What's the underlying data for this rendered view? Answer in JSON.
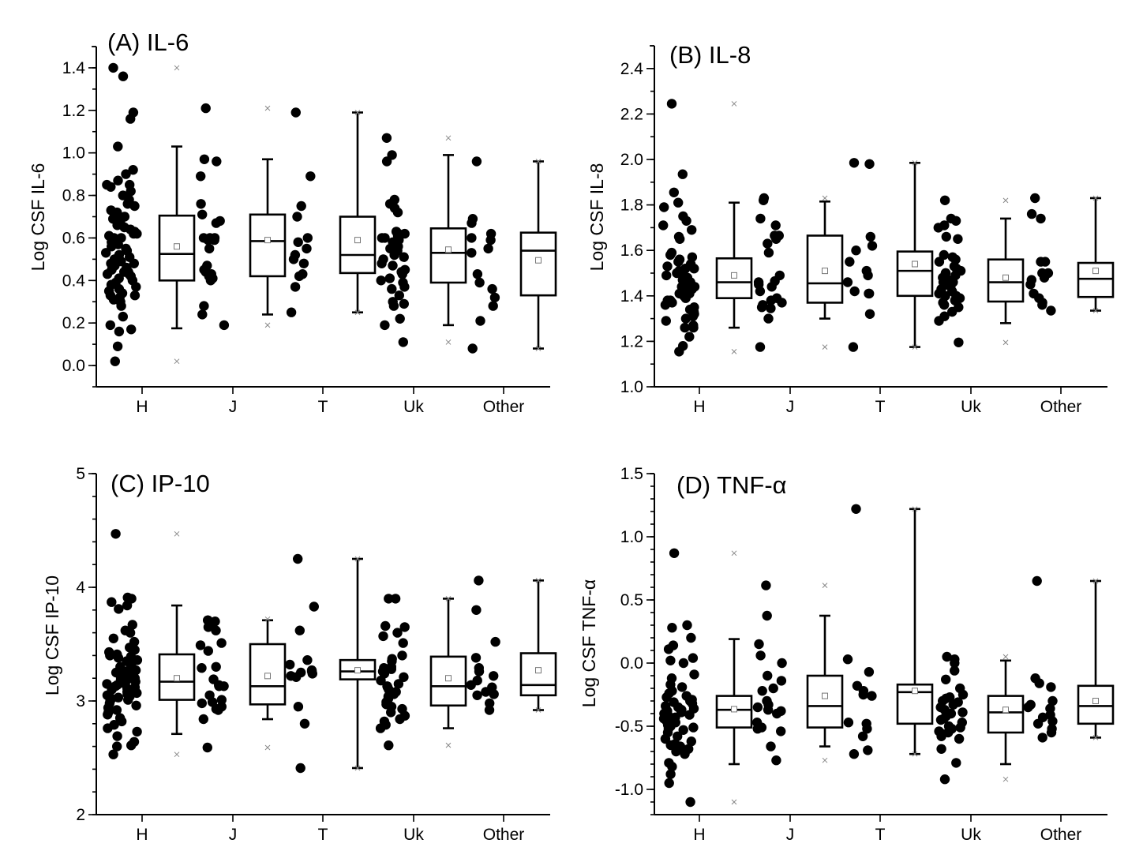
{
  "figure": {
    "background": "#ffffff",
    "dot_color": "#000000",
    "marker_color": "#888888"
  },
  "chart_data": [
    {
      "type": "box",
      "title": "(A) IL-6",
      "ylabel": "Log CSF IL-6",
      "xlabel": "",
      "categories": [
        "H",
        "J",
        "T",
        "Uk",
        "Other"
      ],
      "ylim": [
        -0.1,
        1.5
      ],
      "yticks": [
        0.0,
        0.2,
        0.4,
        0.6,
        0.8,
        1.0,
        1.2,
        1.4
      ],
      "ytick_labels": [
        "0.0",
        "0.2",
        "0.4",
        "0.6",
        "0.8",
        "1.0",
        "1.2",
        "1.4"
      ],
      "yminor_step": 0.1,
      "grid": false,
      "boxes": [
        {
          "category": "H",
          "q1": 0.4,
          "median": 0.525,
          "q3": 0.705,
          "mean": 0.56,
          "whisker_low": 0.175,
          "whisker_high": 1.03,
          "min": 0.02,
          "max": 1.4
        },
        {
          "category": "J",
          "q1": 0.42,
          "median": 0.585,
          "q3": 0.71,
          "mean": 0.59,
          "whisker_low": 0.24,
          "whisker_high": 0.97,
          "min": 0.19,
          "max": 1.21
        },
        {
          "category": "T",
          "q1": 0.435,
          "median": 0.52,
          "q3": 0.7,
          "mean": 0.59,
          "whisker_low": 0.25,
          "whisker_high": 1.19,
          "min": 0.25,
          "max": 1.19
        },
        {
          "category": "Uk",
          "q1": 0.39,
          "median": 0.53,
          "q3": 0.645,
          "mean": 0.545,
          "whisker_low": 0.19,
          "whisker_high": 0.99,
          "min": 0.11,
          "max": 1.07
        },
        {
          "category": "Other",
          "q1": 0.33,
          "median": 0.54,
          "q3": 0.625,
          "mean": 0.495,
          "whisker_low": 0.08,
          "whisker_high": 0.96,
          "min": 0.08,
          "max": 0.96
        }
      ],
      "points": {
        "H": [
          1.4,
          1.36,
          1.19,
          1.16,
          1.03,
          0.92,
          0.9,
          0.87,
          0.85,
          0.85,
          0.84,
          0.82,
          0.8,
          0.78,
          0.76,
          0.75,
          0.73,
          0.72,
          0.71,
          0.7,
          0.7,
          0.69,
          0.68,
          0.67,
          0.66,
          0.65,
          0.64,
          0.63,
          0.62,
          0.62,
          0.61,
          0.6,
          0.6,
          0.59,
          0.58,
          0.57,
          0.56,
          0.55,
          0.54,
          0.53,
          0.52,
          0.51,
          0.5,
          0.49,
          0.48,
          0.48,
          0.47,
          0.46,
          0.45,
          0.44,
          0.44,
          0.43,
          0.43,
          0.42,
          0.41,
          0.4,
          0.39,
          0.38,
          0.37,
          0.36,
          0.35,
          0.34,
          0.33,
          0.33,
          0.32,
          0.31,
          0.3,
          0.28,
          0.23,
          0.19,
          0.17,
          0.16,
          0.09,
          0.02
        ],
        "J": [
          1.21,
          0.97,
          0.96,
          0.89,
          0.76,
          0.71,
          0.67,
          0.68,
          0.6,
          0.6,
          0.59,
          0.59,
          0.55,
          0.6,
          0.47,
          0.45,
          0.44,
          0.43,
          0.42,
          0.41,
          0.4,
          0.28,
          0.24,
          0.19
        ],
        "T": [
          1.19,
          0.89,
          0.75,
          0.7,
          0.6,
          0.58,
          0.55,
          0.52,
          0.5,
          0.48,
          0.43,
          0.42,
          0.37,
          0.25
        ],
        "Uk": [
          1.07,
          0.99,
          0.96,
          0.78,
          0.76,
          0.74,
          0.72,
          0.63,
          0.62,
          0.62,
          0.61,
          0.6,
          0.6,
          0.59,
          0.58,
          0.56,
          0.55,
          0.54,
          0.52,
          0.51,
          0.5,
          0.48,
          0.47,
          0.45,
          0.44,
          0.43,
          0.41,
          0.4,
          0.39,
          0.37,
          0.36,
          0.33,
          0.3,
          0.29,
          0.28,
          0.22,
          0.19,
          0.11
        ],
        "Other": [
          0.96,
          0.69,
          0.67,
          0.62,
          0.6,
          0.59,
          0.55,
          0.53,
          0.43,
          0.39,
          0.36,
          0.32,
          0.28,
          0.21,
          0.08
        ]
      }
    },
    {
      "type": "box",
      "title": "(B) IL-8",
      "ylabel": "Log CSF IL-8",
      "xlabel": "",
      "categories": [
        "H",
        "J",
        "T",
        "Uk",
        "Other"
      ],
      "ylim": [
        1.0,
        2.5
      ],
      "yticks": [
        1.0,
        1.2,
        1.4,
        1.6,
        1.8,
        2.0,
        2.2,
        2.4
      ],
      "ytick_labels": [
        "1.0",
        "1.2",
        "1.4",
        "1.6",
        "1.8",
        "2.0",
        "2.2",
        "2.4"
      ],
      "yminor_step": 0.1,
      "grid": false,
      "boxes": [
        {
          "category": "H",
          "q1": 1.39,
          "median": 1.46,
          "q3": 1.565,
          "mean": 1.49,
          "whisker_low": 1.26,
          "whisker_high": 1.81,
          "min": 1.155,
          "max": 2.245
        },
        {
          "category": "J",
          "q1": 1.37,
          "median": 1.455,
          "q3": 1.665,
          "mean": 1.51,
          "whisker_low": 1.3,
          "whisker_high": 1.815,
          "min": 1.175,
          "max": 1.83
        },
        {
          "category": "T",
          "q1": 1.4,
          "median": 1.51,
          "q3": 1.595,
          "mean": 1.54,
          "whisker_low": 1.175,
          "whisker_high": 1.985,
          "min": 1.175,
          "max": 1.985
        },
        {
          "category": "Uk",
          "q1": 1.375,
          "median": 1.46,
          "q3": 1.56,
          "mean": 1.48,
          "whisker_low": 1.28,
          "whisker_high": 1.74,
          "min": 1.195,
          "max": 1.82
        },
        {
          "category": "Other",
          "q1": 1.395,
          "median": 1.475,
          "q3": 1.545,
          "mean": 1.51,
          "whisker_low": 1.335,
          "whisker_high": 1.83,
          "min": 1.335,
          "max": 1.83
        }
      ],
      "points": {
        "H": [
          2.245,
          1.935,
          1.855,
          1.81,
          1.79,
          1.75,
          1.73,
          1.71,
          1.69,
          1.66,
          1.65,
          1.59,
          1.58,
          1.57,
          1.56,
          1.56,
          1.55,
          1.54,
          1.53,
          1.52,
          1.52,
          1.51,
          1.5,
          1.5,
          1.49,
          1.48,
          1.48,
          1.47,
          1.46,
          1.46,
          1.45,
          1.44,
          1.44,
          1.43,
          1.43,
          1.42,
          1.42,
          1.41,
          1.41,
          1.4,
          1.4,
          1.39,
          1.38,
          1.38,
          1.37,
          1.36,
          1.35,
          1.34,
          1.33,
          1.32,
          1.31,
          1.3,
          1.29,
          1.27,
          1.26,
          1.26,
          1.22,
          1.18,
          1.155
        ],
        "J": [
          1.83,
          1.82,
          1.74,
          1.71,
          1.665,
          1.665,
          1.65,
          1.63,
          1.59,
          1.49,
          1.465,
          1.46,
          1.45,
          1.44,
          1.42,
          1.39,
          1.38,
          1.37,
          1.36,
          1.35,
          1.345,
          1.3,
          1.175
        ],
        "T": [
          1.985,
          1.98,
          1.66,
          1.62,
          1.6,
          1.55,
          1.51,
          1.49,
          1.46,
          1.42,
          1.41,
          1.41,
          1.32,
          1.175
        ],
        "Uk": [
          1.82,
          1.74,
          1.73,
          1.71,
          1.7,
          1.66,
          1.65,
          1.58,
          1.57,
          1.56,
          1.55,
          1.53,
          1.52,
          1.51,
          1.5,
          1.5,
          1.49,
          1.48,
          1.47,
          1.46,
          1.46,
          1.45,
          1.44,
          1.43,
          1.42,
          1.41,
          1.4,
          1.4,
          1.39,
          1.38,
          1.37,
          1.36,
          1.35,
          1.33,
          1.31,
          1.29,
          1.195
        ],
        "Other": [
          1.83,
          1.76,
          1.74,
          1.55,
          1.55,
          1.5,
          1.5,
          1.48,
          1.47,
          1.45,
          1.41,
          1.39,
          1.37,
          1.36,
          1.335
        ]
      }
    },
    {
      "type": "box",
      "title": "(C) IP-10",
      "ylabel": "Log CSF IP-10",
      "xlabel": "",
      "categories": [
        "H",
        "J",
        "T",
        "Uk",
        "Other"
      ],
      "ylim": [
        2,
        5
      ],
      "yticks": [
        2,
        3,
        4,
        5
      ],
      "ytick_labels": [
        "2",
        "3",
        "4",
        "5"
      ],
      "yminor_step": 0.2,
      "grid": false,
      "boxes": [
        {
          "category": "H",
          "q1": 3.01,
          "median": 3.17,
          "q3": 3.41,
          "mean": 3.2,
          "whisker_low": 2.71,
          "whisker_high": 3.84,
          "min": 2.53,
          "max": 4.47
        },
        {
          "category": "J",
          "q1": 2.97,
          "median": 3.13,
          "q3": 3.5,
          "mean": 3.22,
          "whisker_low": 2.84,
          "whisker_high": 3.71,
          "min": 2.59,
          "max": 3.72
        },
        {
          "category": "T",
          "q1": 3.19,
          "median": 3.26,
          "q3": 3.36,
          "mean": 3.27,
          "whisker_low": 2.41,
          "whisker_high": 4.25,
          "min": 2.41,
          "max": 4.25
        },
        {
          "category": "Uk",
          "q1": 2.96,
          "median": 3.13,
          "q3": 3.39,
          "mean": 3.2,
          "whisker_low": 2.76,
          "whisker_high": 3.9,
          "min": 2.61,
          "max": 3.9
        },
        {
          "category": "Other",
          "q1": 3.05,
          "median": 3.14,
          "q3": 3.42,
          "mean": 3.27,
          "whisker_low": 2.92,
          "whisker_high": 4.06,
          "min": 2.92,
          "max": 4.06
        }
      ],
      "points": {
        "H": [
          4.47,
          3.91,
          3.9,
          3.87,
          3.84,
          3.81,
          3.67,
          3.62,
          3.6,
          3.55,
          3.52,
          3.47,
          3.45,
          3.43,
          3.41,
          3.4,
          3.39,
          3.38,
          3.36,
          3.35,
          3.33,
          3.31,
          3.3,
          3.29,
          3.28,
          3.27,
          3.26,
          3.25,
          3.24,
          3.23,
          3.22,
          3.21,
          3.2,
          3.19,
          3.18,
          3.17,
          3.16,
          3.15,
          3.14,
          3.13,
          3.12,
          3.11,
          3.1,
          3.09,
          3.08,
          3.07,
          3.06,
          3.05,
          3.04,
          3.03,
          3.02,
          3.01,
          3.0,
          2.98,
          2.96,
          2.94,
          2.92,
          2.9,
          2.88,
          2.85,
          2.82,
          2.79,
          2.76,
          2.73,
          2.69,
          2.64,
          2.61,
          2.6,
          2.53
        ],
        "J": [
          3.71,
          3.71,
          3.7,
          3.68,
          3.65,
          3.62,
          3.51,
          3.49,
          3.44,
          3.3,
          3.29,
          3.19,
          3.14,
          3.13,
          3.13,
          3.05,
          3.01,
          2.99,
          2.98,
          2.95,
          2.93,
          2.92,
          2.84,
          2.59
        ],
        "T": [
          4.25,
          3.83,
          3.62,
          3.36,
          3.32,
          3.27,
          3.26,
          3.25,
          3.24,
          3.22,
          3.21,
          2.95,
          2.8,
          2.41
        ],
        "Uk": [
          3.9,
          3.9,
          3.66,
          3.65,
          3.6,
          3.57,
          3.51,
          3.4,
          3.37,
          3.35,
          3.3,
          3.29,
          3.28,
          3.26,
          3.24,
          3.21,
          3.18,
          3.15,
          3.13,
          3.12,
          3.1,
          3.08,
          3.06,
          3.04,
          3.02,
          2.99,
          2.97,
          2.95,
          2.93,
          2.9,
          2.87,
          2.84,
          2.82,
          2.79,
          2.76,
          2.61
        ],
        "Other": [
          4.06,
          3.8,
          3.52,
          3.38,
          3.29,
          3.26,
          3.22,
          3.18,
          3.14,
          3.12,
          3.08,
          3.06,
          3.05,
          2.98,
          2.92
        ]
      }
    },
    {
      "type": "box",
      "title": "(D) TNF-α",
      "ylabel": "Log CSF TNF-α",
      "xlabel": "",
      "categories": [
        "H",
        "J",
        "T",
        "Uk",
        "Other"
      ],
      "ylim": [
        -1.2,
        1.5
      ],
      "yticks": [
        -1.0,
        -0.5,
        0.0,
        0.5,
        1.0,
        1.5
      ],
      "ytick_labels": [
        "-1.0",
        "-0.5",
        "0.0",
        "0.5",
        "1.0",
        "1.5"
      ],
      "yminor_step": 0.1,
      "grid": false,
      "boxes": [
        {
          "category": "H",
          "q1": -0.51,
          "median": -0.37,
          "q3": -0.26,
          "mean": -0.365,
          "whisker_low": -0.8,
          "whisker_high": 0.19,
          "min": -1.1,
          "max": 0.87
        },
        {
          "category": "J",
          "q1": -0.51,
          "median": -0.34,
          "q3": -0.1,
          "mean": -0.26,
          "whisker_low": -0.66,
          "whisker_high": 0.375,
          "min": -0.77,
          "max": 0.615
        },
        {
          "category": "T",
          "q1": -0.48,
          "median": -0.23,
          "q3": -0.17,
          "mean": -0.22,
          "whisker_low": -0.72,
          "whisker_high": 1.22,
          "min": -0.72,
          "max": 1.22
        },
        {
          "category": "Uk",
          "q1": -0.55,
          "median": -0.39,
          "q3": -0.26,
          "mean": -0.37,
          "whisker_low": -0.8,
          "whisker_high": 0.02,
          "min": -0.92,
          "max": 0.05
        },
        {
          "category": "Other",
          "q1": -0.48,
          "median": -0.34,
          "q3": -0.18,
          "mean": -0.3,
          "whisker_low": -0.59,
          "whisker_high": 0.65,
          "min": -0.59,
          "max": 0.65
        }
      ],
      "points": {
        "H": [
          0.87,
          0.3,
          0.28,
          0.2,
          0.14,
          0.11,
          0.04,
          0.02,
          0.0,
          -0.09,
          -0.12,
          -0.17,
          -0.19,
          -0.22,
          -0.24,
          -0.26,
          -0.27,
          -0.29,
          -0.3,
          -0.31,
          -0.32,
          -0.34,
          -0.35,
          -0.36,
          -0.37,
          -0.38,
          -0.39,
          -0.4,
          -0.41,
          -0.42,
          -0.43,
          -0.44,
          -0.45,
          -0.46,
          -0.47,
          -0.48,
          -0.49,
          -0.5,
          -0.5,
          -0.51,
          -0.52,
          -0.53,
          -0.55,
          -0.58,
          -0.6,
          -0.62,
          -0.64,
          -0.65,
          -0.66,
          -0.68,
          -0.7,
          -0.72,
          -0.79,
          -0.82,
          -0.88,
          -0.95,
          -1.1
        ],
        "J": [
          0.615,
          0.375,
          0.15,
          0.06,
          0.0,
          -0.1,
          -0.14,
          -0.2,
          -0.22,
          -0.3,
          -0.33,
          -0.35,
          -0.37,
          -0.38,
          -0.4,
          -0.47,
          -0.51,
          -0.52,
          -0.54,
          -0.66,
          -0.77
        ],
        "T": [
          1.22,
          0.03,
          -0.07,
          -0.18,
          -0.22,
          -0.25,
          -0.26,
          -0.47,
          -0.48,
          -0.52,
          -0.58,
          -0.69,
          -0.72
        ],
        "Uk": [
          0.05,
          0.03,
          0.0,
          -0.06,
          -0.13,
          -0.2,
          -0.25,
          -0.27,
          -0.28,
          -0.3,
          -0.31,
          -0.33,
          -0.35,
          -0.37,
          -0.39,
          -0.4,
          -0.42,
          -0.44,
          -0.45,
          -0.47,
          -0.5,
          -0.51,
          -0.52,
          -0.53,
          -0.54,
          -0.55,
          -0.56,
          -0.58,
          -0.6,
          -0.68,
          -0.79,
          -0.92
        ],
        "Other": [
          0.65,
          -0.12,
          -0.16,
          -0.19,
          -0.3,
          -0.33,
          -0.35,
          -0.36,
          -0.41,
          -0.43,
          -0.46,
          -0.48,
          -0.52,
          -0.55,
          -0.59
        ]
      }
    }
  ]
}
